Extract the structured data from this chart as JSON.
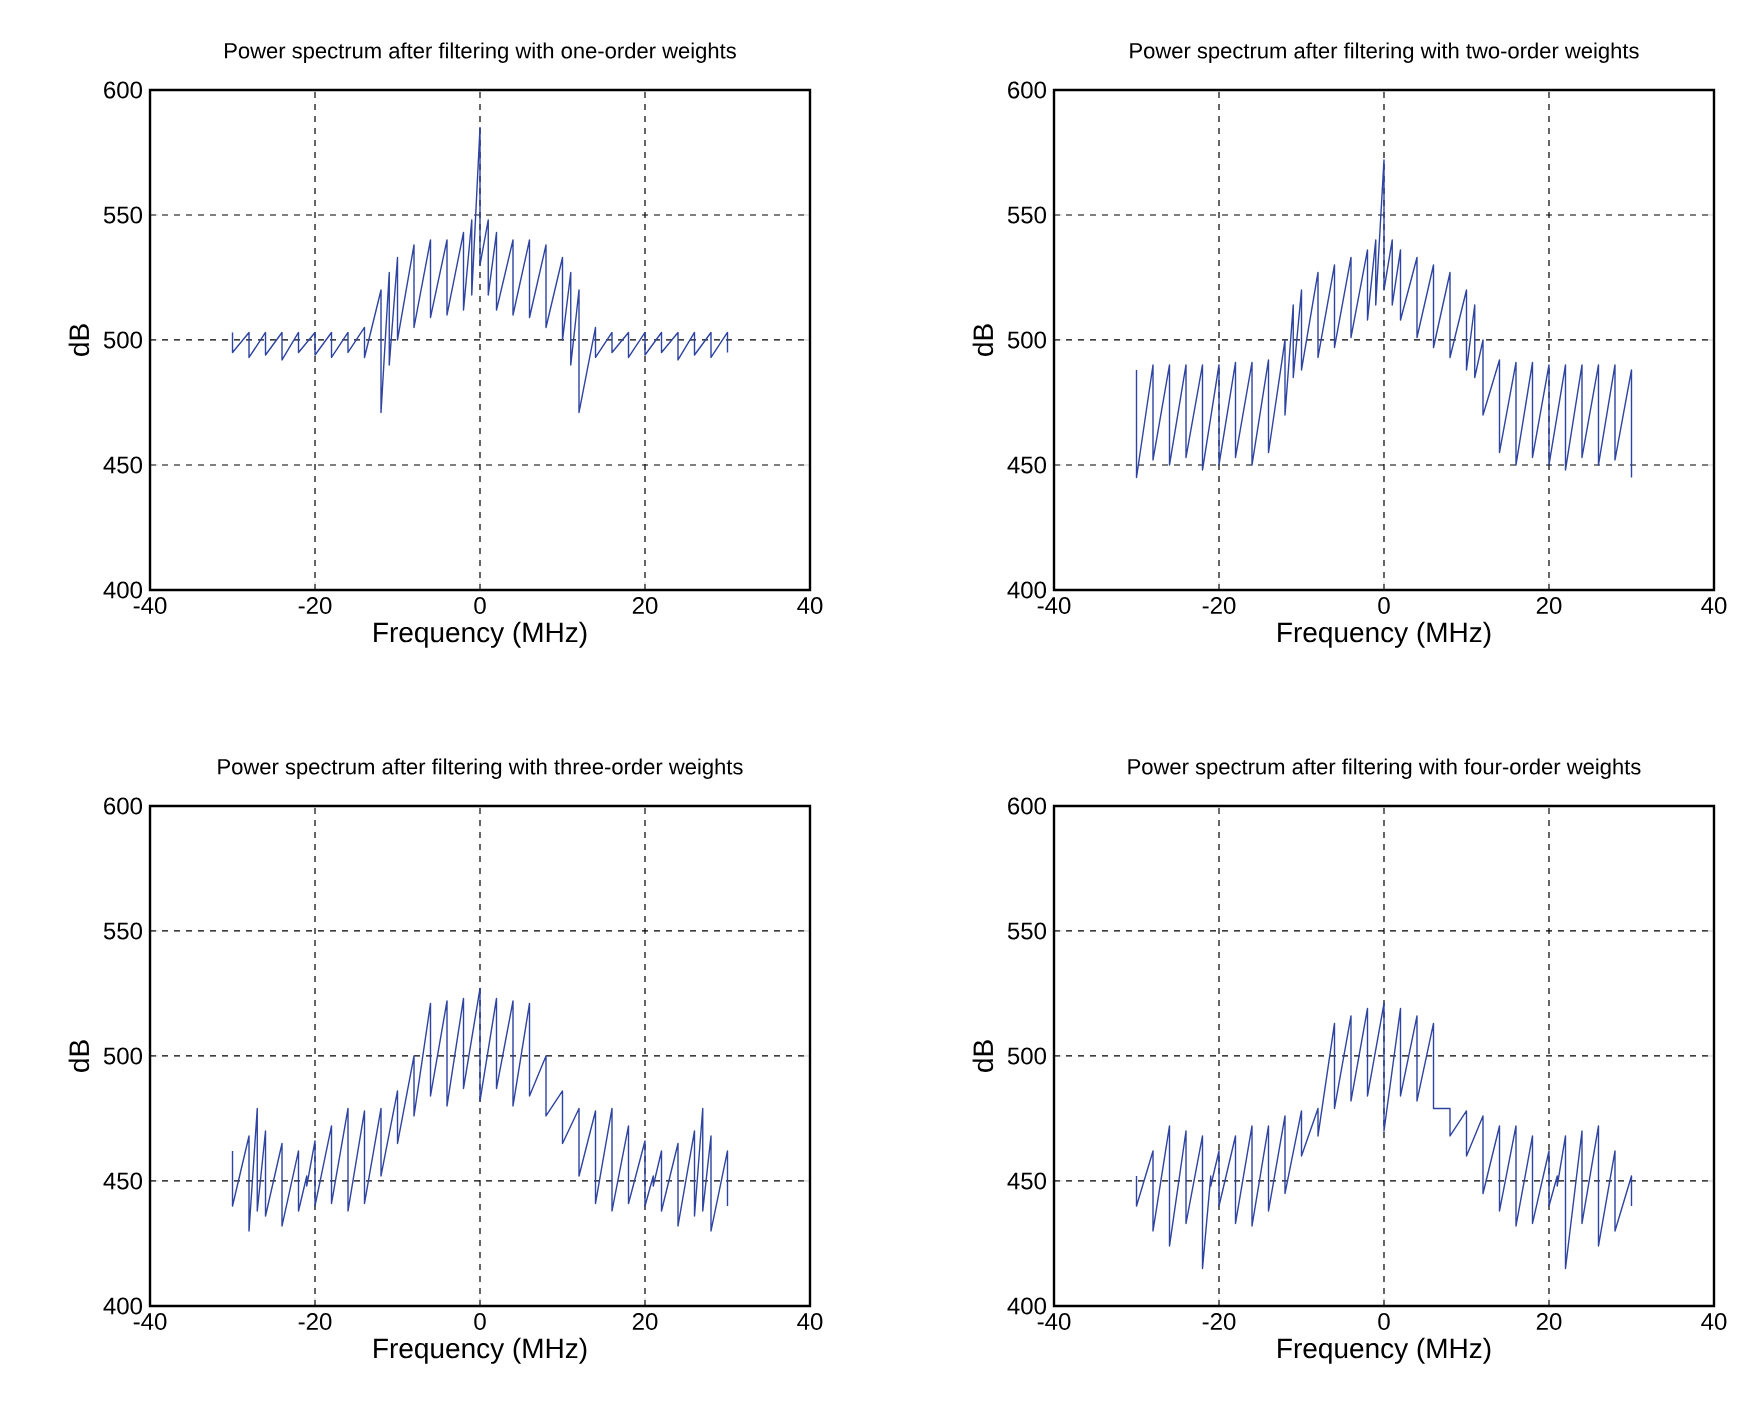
{
  "chart_data": [
    {
      "type": "line",
      "title": "Power spectrum after filtering with one-order weights",
      "xlabel": "Frequency (MHz)",
      "ylabel": "dB",
      "xlim": [
        -40,
        40
      ],
      "ylim": [
        400,
        600
      ],
      "xticks": [
        -40,
        -20,
        0,
        20,
        40
      ],
      "yticks": [
        400,
        450,
        500,
        550,
        600
      ],
      "grid": true,
      "series": [
        {
          "color": "#2e44a0",
          "x": [
            -30,
            -30,
            -28,
            -28,
            -26,
            -26,
            -24,
            -24,
            -22,
            -22,
            -20,
            -20,
            -18,
            -18,
            -16,
            -16,
            -14,
            -14,
            -12,
            -12,
            -11,
            -11,
            -10,
            -10,
            -8,
            -8,
            -6,
            -6,
            -4,
            -4,
            -2,
            -2,
            -1,
            -1,
            0,
            0,
            1,
            1,
            2,
            2,
            4,
            4,
            6,
            6,
            8,
            8,
            10,
            10,
            11,
            11,
            12,
            12,
            14,
            14,
            16,
            16,
            18,
            18,
            20,
            20,
            22,
            22,
            24,
            24,
            26,
            26,
            28,
            28,
            30,
            30
          ],
          "values": [
            503,
            495,
            503,
            493,
            503,
            494,
            503,
            492,
            503,
            495,
            503,
            494,
            503,
            493,
            503,
            495,
            505,
            493,
            520,
            471,
            527,
            490,
            533,
            500,
            538,
            505,
            540,
            509,
            540,
            510,
            543,
            512,
            548,
            518,
            585,
            530,
            548,
            518,
            543,
            512,
            540,
            510,
            540,
            509,
            538,
            505,
            533,
            500,
            527,
            490,
            520,
            471,
            505,
            493,
            503,
            495,
            503,
            493,
            503,
            494,
            503,
            495,
            503,
            492,
            503,
            494,
            503,
            493,
            503,
            495
          ]
        }
      ]
    },
    {
      "type": "line",
      "title": "Power spectrum after filtering with two-order weights",
      "xlabel": "Frequency (MHz)",
      "ylabel": "dB",
      "xlim": [
        -40,
        40
      ],
      "ylim": [
        400,
        600
      ],
      "xticks": [
        -40,
        -20,
        0,
        20,
        40
      ],
      "yticks": [
        400,
        450,
        500,
        550,
        600
      ],
      "grid": true,
      "series": [
        {
          "color": "#2e44a0",
          "x": [
            -30,
            -30,
            -28,
            -28,
            -26,
            -26,
            -24,
            -24,
            -22,
            -22,
            -20,
            -20,
            -18,
            -18,
            -16,
            -16,
            -14,
            -14,
            -12,
            -12,
            -11,
            -11,
            -10,
            -10,
            -8,
            -8,
            -6,
            -6,
            -4,
            -4,
            -2,
            -2,
            -1,
            -1,
            0,
            0,
            1,
            1,
            2,
            2,
            4,
            4,
            6,
            6,
            8,
            8,
            10,
            10,
            11,
            11,
            12,
            12,
            14,
            14,
            16,
            16,
            18,
            18,
            20,
            20,
            22,
            22,
            24,
            24,
            26,
            26,
            28,
            28,
            30,
            30
          ],
          "values": [
            488,
            445,
            490,
            452,
            490,
            450,
            490,
            453,
            490,
            448,
            490,
            450,
            491,
            453,
            491,
            450,
            492,
            455,
            500,
            470,
            514,
            485,
            520,
            488,
            527,
            493,
            530,
            497,
            533,
            501,
            536,
            508,
            540,
            514,
            572,
            520,
            540,
            514,
            536,
            508,
            533,
            501,
            530,
            497,
            527,
            493,
            520,
            488,
            514,
            485,
            500,
            470,
            492,
            455,
            491,
            450,
            491,
            453,
            490,
            450,
            490,
            448,
            490,
            453,
            490,
            450,
            490,
            452,
            488,
            445
          ]
        }
      ]
    },
    {
      "type": "line",
      "title": "Power spectrum after filtering with three-order weights",
      "xlabel": "Frequency (MHz)",
      "ylabel": "dB",
      "xlim": [
        -40,
        40
      ],
      "ylim": [
        400,
        600
      ],
      "xticks": [
        -40,
        -20,
        0,
        20,
        40
      ],
      "yticks": [
        400,
        450,
        500,
        550,
        600
      ],
      "grid": true,
      "series": [
        {
          "color": "#2e44a0",
          "x": [
            -30,
            -30,
            -28,
            -28,
            -27,
            -27,
            -26,
            -26,
            -24,
            -24,
            -22,
            -22,
            -21,
            -21,
            -20,
            -20,
            -18,
            -18,
            -16,
            -16,
            -14,
            -14,
            -12,
            -12,
            -10,
            -10,
            -8,
            -8,
            -6,
            -6,
            -4,
            -4,
            -2,
            -2,
            0,
            0,
            2,
            2,
            4,
            4,
            6,
            6,
            8,
            8,
            10,
            10,
            12,
            12,
            14,
            14,
            16,
            16,
            18,
            18,
            20,
            20,
            21,
            21,
            22,
            22,
            24,
            24,
            26,
            26,
            27,
            27,
            28,
            28,
            30,
            30
          ],
          "values": [
            462,
            440,
            468,
            430,
            479,
            438,
            470,
            436,
            465,
            432,
            462,
            438,
            452,
            448,
            466,
            440,
            472,
            441,
            479,
            438,
            478,
            441,
            479,
            452,
            486,
            465,
            500,
            476,
            521,
            484,
            522,
            480,
            523,
            487,
            527,
            482,
            523,
            487,
            522,
            480,
            521,
            484,
            500,
            476,
            486,
            465,
            479,
            452,
            478,
            441,
            479,
            438,
            472,
            441,
            466,
            440,
            452,
            448,
            462,
            438,
            465,
            432,
            470,
            436,
            479,
            438,
            468,
            430,
            462,
            440
          ]
        }
      ]
    },
    {
      "type": "line",
      "title": "Power spectrum after filtering with four-order weights",
      "xlabel": "Frequency (MHz)",
      "ylabel": "dB",
      "xlim": [
        -40,
        40
      ],
      "ylim": [
        400,
        600
      ],
      "xticks": [
        -40,
        -20,
        0,
        20,
        40
      ],
      "yticks": [
        400,
        450,
        500,
        550,
        600
      ],
      "grid": true,
      "series": [
        {
          "color": "#2e44a0",
          "x": [
            -30,
            -30,
            -28,
            -28,
            -26,
            -26,
            -24,
            -24,
            -22,
            -22,
            -21,
            -21,
            -20,
            -20,
            -18,
            -18,
            -16,
            -16,
            -14,
            -14,
            -12,
            -12,
            -10,
            -10,
            -8,
            -8,
            -6,
            -6,
            -4,
            -4,
            -2,
            -2,
            0,
            0,
            2,
            2,
            4,
            4,
            6,
            6,
            8,
            8,
            10,
            10,
            12,
            12,
            14,
            14,
            16,
            16,
            18,
            18,
            20,
            20,
            21,
            21,
            22,
            22,
            24,
            24,
            26,
            26,
            28,
            28,
            30,
            30
          ],
          "values": [
            452,
            440,
            462,
            430,
            472,
            424,
            470,
            433,
            468,
            415,
            452,
            448,
            462,
            440,
            468,
            433,
            472,
            432,
            472,
            438,
            476,
            445,
            478,
            460,
            479,
            468,
            513,
            479,
            516,
            482,
            519,
            484,
            521,
            470,
            519,
            484,
            516,
            482,
            513,
            479,
            479,
            468,
            478,
            460,
            476,
            445,
            472,
            438,
            472,
            432,
            468,
            433,
            462,
            440,
            452,
            448,
            468,
            415,
            470,
            433,
            472,
            424,
            462,
            430,
            452,
            440
          ]
        }
      ]
    }
  ]
}
